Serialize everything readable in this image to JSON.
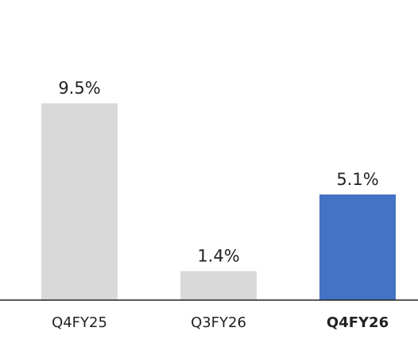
{
  "chart_data": {
    "type": "bar",
    "categories": [
      "Q4FY25",
      "Q3FY26",
      "Q4FY26"
    ],
    "values": [
      9.5,
      1.4,
      5.1
    ],
    "value_labels": [
      "9.5%",
      "1.4%",
      "5.1%"
    ],
    "colors": [
      "#d9d9d9",
      "#d9d9d9",
      "#4472c4"
    ],
    "highlight": 2,
    "ylim": [
      0,
      12
    ]
  }
}
